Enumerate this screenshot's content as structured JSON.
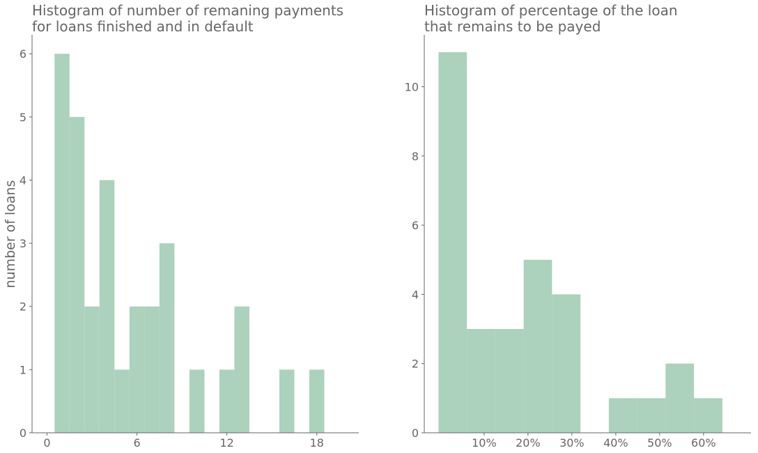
{
  "figure": {
    "background": "#ffffff",
    "bar_color": "#acd1bc",
    "text_color": "#666666"
  },
  "chart_data": [
    {
      "type": "bar",
      "title": "Histogram of number of remaning payments\nfor loans finished and in default",
      "xlabel": "",
      "ylabel": "number of loans",
      "xlim": [
        -1,
        20.8
      ],
      "ylim": [
        0,
        6.3
      ],
      "grid": false,
      "xticks": [
        {
          "value": 0,
          "label": "0"
        },
        {
          "value": 6,
          "label": "6"
        },
        {
          "value": 12,
          "label": "12"
        },
        {
          "value": 18,
          "label": "18"
        }
      ],
      "yticks": [
        {
          "value": 0,
          "label": "0"
        },
        {
          "value": 1,
          "label": "1"
        },
        {
          "value": 2,
          "label": "2"
        },
        {
          "value": 3,
          "label": "3"
        },
        {
          "value": 4,
          "label": "4"
        },
        {
          "value": 5,
          "label": "5"
        },
        {
          "value": 6,
          "label": "6"
        }
      ],
      "bins": [
        {
          "start": 0.5,
          "end": 1.5,
          "count": 6
        },
        {
          "start": 1.5,
          "end": 2.5,
          "count": 5
        },
        {
          "start": 2.5,
          "end": 3.5,
          "count": 2
        },
        {
          "start": 3.5,
          "end": 4.5,
          "count": 4
        },
        {
          "start": 4.5,
          "end": 5.5,
          "count": 1
        },
        {
          "start": 5.5,
          "end": 6.5,
          "count": 2
        },
        {
          "start": 6.5,
          "end": 7.5,
          "count": 2
        },
        {
          "start": 7.5,
          "end": 8.5,
          "count": 3
        },
        {
          "start": 8.5,
          "end": 9.5,
          "count": 0
        },
        {
          "start": 9.5,
          "end": 10.5,
          "count": 1
        },
        {
          "start": 10.5,
          "end": 11.5,
          "count": 0
        },
        {
          "start": 11.5,
          "end": 12.5,
          "count": 1
        },
        {
          "start": 12.5,
          "end": 13.5,
          "count": 2
        },
        {
          "start": 13.5,
          "end": 14.5,
          "count": 0
        },
        {
          "start": 14.5,
          "end": 15.5,
          "count": 0
        },
        {
          "start": 15.5,
          "end": 16.5,
          "count": 1
        },
        {
          "start": 16.5,
          "end": 17.5,
          "count": 0
        },
        {
          "start": 17.5,
          "end": 18.5,
          "count": 1
        }
      ]
    },
    {
      "type": "bar",
      "title": "Histogram of percentage of the loan\nthat remains to be payed",
      "xlabel": "",
      "ylabel": "",
      "xlim": [
        -0.0363,
        0.7082
      ],
      "ylim": [
        0,
        11.5
      ],
      "grid": false,
      "xticks": [
        {
          "value": 0.1,
          "label": "10%"
        },
        {
          "value": 0.2,
          "label": "20%"
        },
        {
          "value": 0.3,
          "label": "30%"
        },
        {
          "value": 0.4,
          "label": "40%"
        },
        {
          "value": 0.5,
          "label": "50%"
        },
        {
          "value": 0.6,
          "label": "60%"
        }
      ],
      "yticks": [
        {
          "value": 0,
          "label": "0"
        },
        {
          "value": 2,
          "label": "2"
        },
        {
          "value": 4,
          "label": "4"
        },
        {
          "value": 6,
          "label": "6"
        },
        {
          "value": 8,
          "label": "8"
        },
        {
          "value": 10,
          "label": "10"
        }
      ],
      "bins": [
        {
          "start": -0.0039,
          "end": 0.0607,
          "count": 11
        },
        {
          "start": 0.0607,
          "end": 0.1254,
          "count": 3
        },
        {
          "start": 0.1254,
          "end": 0.1901,
          "count": 3
        },
        {
          "start": 0.1901,
          "end": 0.2548,
          "count": 5
        },
        {
          "start": 0.2548,
          "end": 0.3195,
          "count": 4
        },
        {
          "start": 0.3195,
          "end": 0.3842,
          "count": 0
        },
        {
          "start": 0.3842,
          "end": 0.4488,
          "count": 1
        },
        {
          "start": 0.4488,
          "end": 0.5135,
          "count": 1
        },
        {
          "start": 0.5135,
          "end": 0.5782,
          "count": 2
        },
        {
          "start": 0.5782,
          "end": 0.6429,
          "count": 1
        }
      ]
    }
  ]
}
